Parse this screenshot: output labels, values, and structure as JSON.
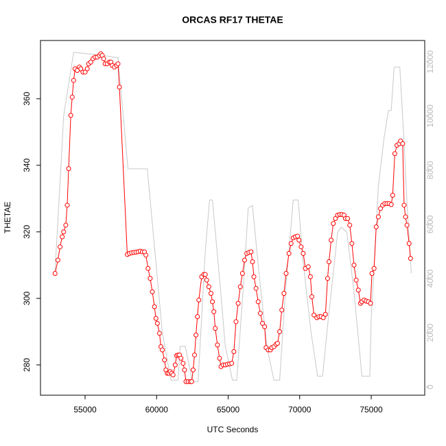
{
  "chart_data": {
    "type": "line",
    "title": "ORCAS RF17 THETAE",
    "x_label": "UTC Seconds",
    "y_label": "THETAE",
    "xlim": [
      51882,
      78741
    ],
    "ylim": [
      270.9,
      377.5
    ],
    "y2lim": [
      -304,
      12785
    ],
    "xticks": [
      55000,
      60000,
      65000,
      70000,
      75000
    ],
    "yticks": [
      280,
      300,
      320,
      340,
      360
    ],
    "y2ticks": [
      0,
      2000,
      4000,
      6000,
      8000,
      10000,
      12000
    ],
    "series": [
      {
        "color": "#ff0000",
        "markers": true,
        "x": [
          52900,
          53100,
          53250,
          53400,
          53500,
          53650,
          53750,
          53850,
          54000,
          54100,
          54200,
          54300,
          54450,
          54600,
          54700,
          54850,
          55000,
          55150,
          55250,
          55400,
          55550,
          55700,
          55850,
          56000,
          56100,
          56200,
          56300,
          56400,
          56550,
          56700,
          56800,
          56900,
          57050,
          57200,
          57300,
          57400,
          57950,
          58100,
          58250,
          58400,
          58550,
          58700,
          58850,
          59000,
          59150,
          59250,
          59400,
          59550,
          59700,
          59850,
          59950,
          60050,
          60200,
          60300,
          60400,
          60550,
          60650,
          60750,
          60850,
          60950,
          61050,
          61150,
          61300,
          61400,
          61500,
          61600,
          61700,
          61850,
          61950,
          62050,
          62200,
          62350,
          62450,
          62550,
          62650,
          62750,
          62850,
          62950,
          63150,
          63300,
          63400,
          63500,
          63650,
          63800,
          63900,
          64000,
          64100,
          64250,
          64400,
          64500,
          64650,
          64800,
          64950,
          65100,
          65250,
          65400,
          65550,
          65700,
          65850,
          66000,
          66150,
          66300,
          66450,
          66600,
          66700,
          66800,
          66950,
          67100,
          67250,
          67400,
          67550,
          67650,
          67800,
          67950,
          68050,
          68200,
          68350,
          68450,
          68600,
          68750,
          68900,
          69050,
          69250,
          69400,
          69550,
          69700,
          69850,
          69950,
          70100,
          70250,
          70400,
          70600,
          70750,
          70850,
          71000,
          71200,
          71350,
          71500,
          71650,
          71800,
          71950,
          72050,
          72200,
          72350,
          72500,
          72650,
          72800,
          72950,
          73100,
          73200,
          73350,
          73500,
          73650,
          73800,
          73950,
          74100,
          74250,
          74350,
          74500,
          74650,
          74800,
          74950,
          75050,
          75200,
          75350,
          75500,
          75650,
          75800,
          75950,
          76100,
          76250,
          76400,
          76500,
          76650,
          76800,
          76950,
          77050,
          77200,
          77300,
          77400,
          77500,
          77650,
          77750
        ],
        "values": [
          307.5,
          311.5,
          315.5,
          318.5,
          320,
          322,
          328,
          339,
          355,
          360.5,
          365.5,
          369,
          368.5,
          369.5,
          369,
          368,
          368,
          369,
          370.5,
          371,
          372,
          372.5,
          372.5,
          373,
          373.5,
          373,
          372,
          370.5,
          370.5,
          371,
          371,
          370,
          369.5,
          370,
          370.5,
          363.5,
          313.2,
          313.5,
          313.7,
          313.8,
          313.9,
          314,
          314.2,
          314,
          314,
          313,
          309,
          306,
          302,
          297.5,
          294,
          292.5,
          289.5,
          285.5,
          284.5,
          281.5,
          278.5,
          277.5,
          277.5,
          278,
          277.5,
          277,
          280,
          282.8,
          283,
          283,
          282,
          280.5,
          278.5,
          275,
          275,
          275,
          275,
          278.5,
          283,
          289,
          294.5,
          299.5,
          306.5,
          307.2,
          307.2,
          305.5,
          303.5,
          301.5,
          299,
          296,
          291,
          286,
          282,
          279.5,
          280,
          280,
          280.2,
          280.3,
          280.5,
          284,
          293,
          298.5,
          303.5,
          307.5,
          311.5,
          313.5,
          313.8,
          314,
          311,
          306.5,
          303,
          299,
          295.5,
          292.5,
          291.5,
          285.2,
          284.5,
          284.5,
          285.2,
          285.5,
          286.2,
          286.5,
          290,
          296.5,
          301.5,
          307.5,
          313.5,
          316.5,
          318.2,
          318.5,
          318.7,
          317.5,
          315.5,
          313.5,
          309,
          309.5,
          306.5,
          300.5,
          295,
          294.2,
          294.5,
          294.5,
          294.2,
          295.2,
          306,
          311,
          317.5,
          322.5,
          324,
          325,
          325.2,
          325.2,
          325,
          324,
          324,
          322,
          316.5,
          310,
          305.5,
          302.5,
          298.5,
          299,
          299.5,
          299.2,
          299,
          298.5,
          307.5,
          309,
          321.5,
          324.5,
          327,
          328,
          328.5,
          328.5,
          328.5,
          328.2,
          331,
          343.5,
          346,
          346.5,
          347.3,
          346.5,
          328,
          324.5,
          322,
          316.5,
          312
        ]
      },
      {
        "color": "#c8c8c8",
        "axis": "y2",
        "x": [
          52900,
          53300,
          53500,
          54200,
          56000,
          57300,
          58000,
          59350,
          60400,
          61000,
          61500,
          61650,
          62000,
          62500,
          62900,
          63400,
          63700,
          63900,
          64400,
          64800,
          65300,
          65600,
          66100,
          66400,
          66700,
          67100,
          67700,
          68200,
          68600,
          69000,
          69550,
          69900,
          70200,
          70800,
          71250,
          71600,
          72000,
          72650,
          72900,
          73300,
          73800,
          74350,
          74900,
          75000,
          75500,
          75900,
          76200,
          76400,
          76600,
          77000,
          77300,
          77500,
          77800
        ],
        "values": [
          4300,
          8000,
          10000,
          12350,
          12250,
          12150,
          8050,
          8050,
          2000,
          250,
          250,
          1500,
          1500,
          200,
          200,
          5000,
          6900,
          6900,
          4000,
          1500,
          250,
          250,
          4000,
          6600,
          6700,
          4500,
          1500,
          250,
          250,
          3500,
          6900,
          6900,
          4800,
          2000,
          400,
          400,
          2500,
          5700,
          5900,
          5700,
          3500,
          400,
          400,
          2500,
          7400,
          9200,
          10200,
          10200,
          11800,
          11800,
          9000,
          6800,
          4200
        ]
      }
    ]
  }
}
